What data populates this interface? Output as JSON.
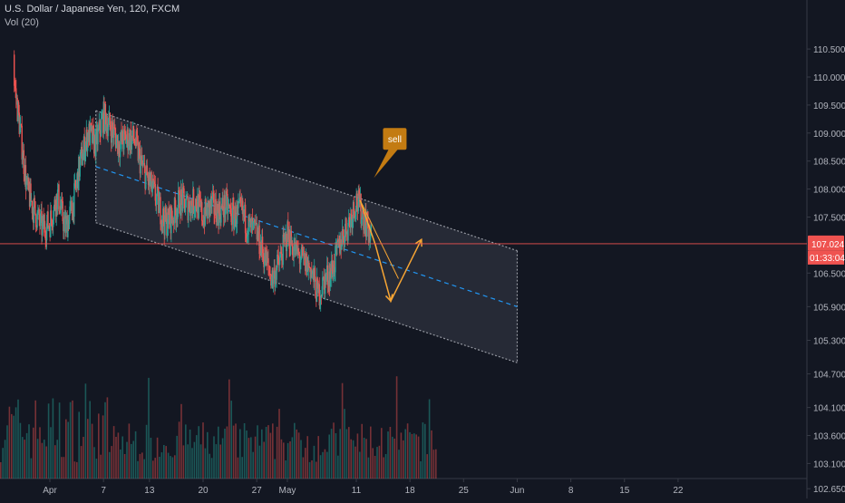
{
  "chart_data": {
    "type": "candlestick",
    "symbol_title": "U.S. Dollar / Japanese Yen, 120, FXCM",
    "volume_label": "Vol (20)",
    "y_axis": {
      "range": [
        102.4,
        111.1
      ],
      "ticks": [
        "110.500",
        "110.000",
        "109.500",
        "109.000",
        "108.500",
        "108.000",
        "107.500",
        "106.500",
        "105.900",
        "105.300",
        "104.700",
        "104.100",
        "103.600",
        "103.100",
        "102.650"
      ],
      "tick_values": [
        110.5,
        110.0,
        109.5,
        109.0,
        108.5,
        108.0,
        107.5,
        106.5,
        105.9,
        105.3,
        104.7,
        104.1,
        103.6,
        103.1,
        102.65
      ]
    },
    "x_axis": {
      "ticks": [
        "Apr",
        "7",
        "13",
        "20",
        "27",
        "May",
        "11",
        "18",
        "25",
        "Jun",
        "8",
        "15",
        "22"
      ],
      "tick_day_index": [
        0,
        7,
        13,
        20,
        27,
        31,
        40,
        47,
        54,
        61,
        68,
        75,
        82
      ]
    },
    "current_price": "107.024",
    "current_price_value": 107.024,
    "countdown": "01:33:04",
    "price_path": [
      {
        "day": -5,
        "price": 110.3
      },
      {
        "day": -4,
        "price": 109.2
      },
      {
        "day": -3,
        "price": 108.0
      },
      {
        "day": -2,
        "price": 107.6
      },
      {
        "day": -1,
        "price": 107.3
      },
      {
        "day": 0,
        "price": 107.4
      },
      {
        "day": 1,
        "price": 107.9
      },
      {
        "day": 2,
        "price": 107.3
      },
      {
        "day": 3,
        "price": 107.7
      },
      {
        "day": 4,
        "price": 108.5
      },
      {
        "day": 5,
        "price": 109.0
      },
      {
        "day": 6,
        "price": 108.8
      },
      {
        "day": 7,
        "price": 109.3
      },
      {
        "day": 8,
        "price": 109.1
      },
      {
        "day": 9,
        "price": 108.8
      },
      {
        "day": 10,
        "price": 108.9
      },
      {
        "day": 11,
        "price": 108.9
      },
      {
        "day": 12,
        "price": 108.4
      },
      {
        "day": 13,
        "price": 108.1
      },
      {
        "day": 14,
        "price": 107.8
      },
      {
        "day": 15,
        "price": 107.4
      },
      {
        "day": 16,
        "price": 107.5
      },
      {
        "day": 17,
        "price": 107.8
      },
      {
        "day": 18,
        "price": 107.7
      },
      {
        "day": 19,
        "price": 107.8
      },
      {
        "day": 20,
        "price": 107.5
      },
      {
        "day": 21,
        "price": 107.7
      },
      {
        "day": 22,
        "price": 107.6
      },
      {
        "day": 23,
        "price": 107.7
      },
      {
        "day": 24,
        "price": 107.5
      },
      {
        "day": 25,
        "price": 107.6
      },
      {
        "day": 26,
        "price": 107.3
      },
      {
        "day": 27,
        "price": 107.2
      },
      {
        "day": 28,
        "price": 106.8
      },
      {
        "day": 29,
        "price": 106.4
      },
      {
        "day": 30,
        "price": 106.7
      },
      {
        "day": 31,
        "price": 107.2
      },
      {
        "day": 32,
        "price": 106.9
      },
      {
        "day": 33,
        "price": 106.7
      },
      {
        "day": 34,
        "price": 106.6
      },
      {
        "day": 35,
        "price": 106.1
      },
      {
        "day": 36,
        "price": 106.4
      },
      {
        "day": 37,
        "price": 106.6
      },
      {
        "day": 38,
        "price": 107.1
      },
      {
        "day": 39,
        "price": 107.4
      },
      {
        "day": 40,
        "price": 107.8
      },
      {
        "day": 41,
        "price": 107.5
      },
      {
        "day": 42,
        "price": 107.1
      }
    ],
    "channel": {
      "upper": {
        "from": {
          "day": 6,
          "price": 109.4
        },
        "to": {
          "day": 61,
          "price": 106.9
        }
      },
      "lower": {
        "from": {
          "day": 6,
          "price": 107.4
        },
        "to": {
          "day": 61,
          "price": 104.9
        }
      },
      "mid": {
        "from": {
          "day": 6,
          "price": 108.4
        },
        "to": {
          "day": 61,
          "price": 105.9
        }
      }
    },
    "projection": [
      {
        "day": 40.5,
        "price": 107.8
      },
      {
        "day": 42.5,
        "price": 107.0
      },
      {
        "day": 44.5,
        "price": 106.0
      },
      {
        "day": 48.5,
        "price": 107.1
      }
    ],
    "projection_alt": [
      {
        "day": 40.5,
        "price": 107.8
      },
      {
        "day": 45.5,
        "price": 106.4
      }
    ],
    "annotation": {
      "text": "sell",
      "day": 42.3,
      "price": 108.2,
      "color": "#c37b12"
    },
    "colors": {
      "background": "#131722",
      "up": "#26a69a",
      "down": "#ef5350",
      "channel_fill": "#2a2e39",
      "channel_border": "#9598a1",
      "mid_line": "#2196f3",
      "price_line": "#ef5350",
      "arrow": "#f7a534",
      "axis_text": "#b2b5be"
    }
  }
}
